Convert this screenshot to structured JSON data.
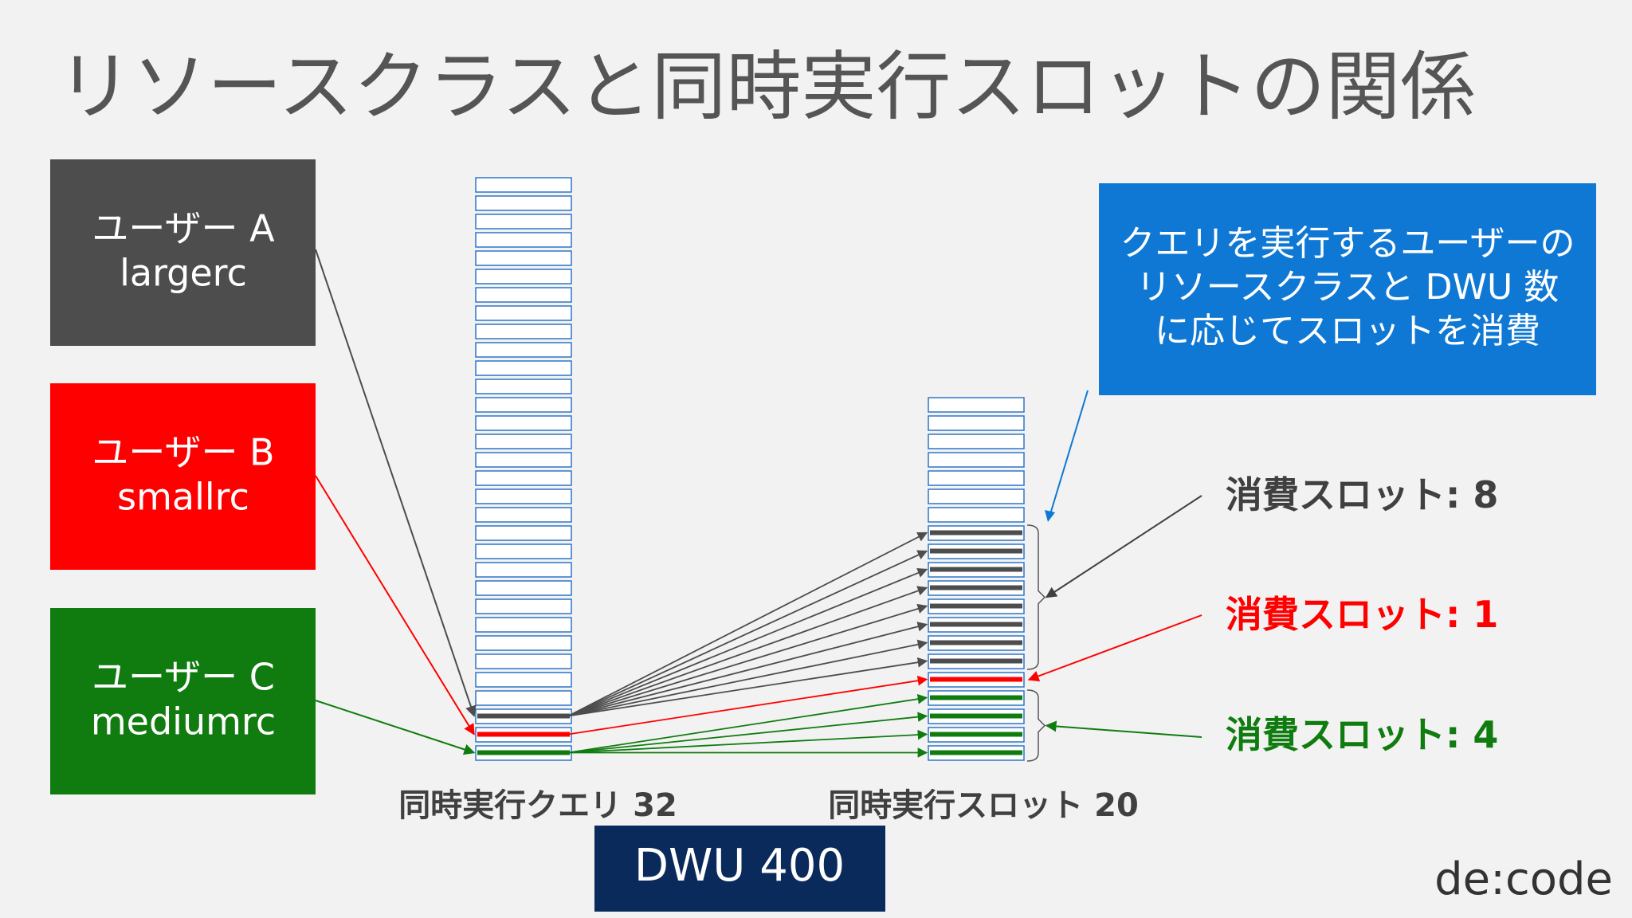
{
  "title": "リソースクラスと同時実行スロットの関係",
  "users": [
    {
      "name": "ユーザー A",
      "resource_class": "largerc",
      "color": "#4d4d4d"
    },
    {
      "name": "ユーザー B",
      "resource_class": "smallrc",
      "color": "#ff0000"
    },
    {
      "name": "ユーザー C",
      "resource_class": "mediumrc",
      "color": "#107c10"
    }
  ],
  "columns": [
    {
      "label": "同時実行クエリ",
      "slots": 32
    },
    {
      "label": "同時実行スロット",
      "slots": 20
    }
  ],
  "callout": [
    "クエリを実行するユーザーの",
    "リソースクラスと DWU 数",
    "に応じてスロットを消費"
  ],
  "consumption": [
    {
      "label": "消費スロット:",
      "value": 8,
      "color": "#404040"
    },
    {
      "label": "消費スロット:",
      "value": 1,
      "color": "#ff0000"
    },
    {
      "label": "消費スロット:",
      "value": 4,
      "color": "#107c10"
    }
  ],
  "dwu": "DWU 400",
  "logo": "de:code"
}
